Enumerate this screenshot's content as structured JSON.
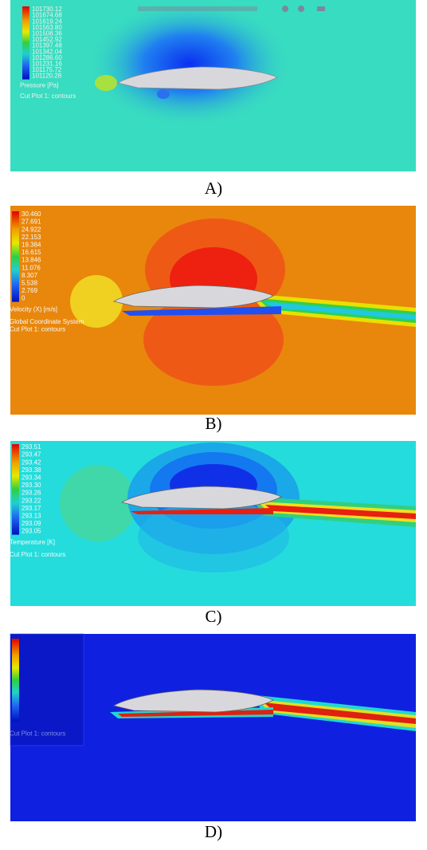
{
  "panels": [
    {
      "caption": "A)",
      "legend": {
        "values": [
          "101730.12",
          "101674.68",
          "101619.24",
          "101563.80",
          "101508.36",
          "101452.92",
          "101397.48",
          "101342.04",
          "101286.60",
          "101231.16",
          "101175.72",
          "101120.28"
        ],
        "title": "Pressure [Pa]",
        "notes": [
          "Cut Plot 1: contours"
        ]
      }
    },
    {
      "caption": "B)",
      "legend": {
        "values": [
          "30.460",
          "27.691",
          "24.922",
          "22.153",
          "19.384",
          "16.615",
          "13.846",
          "11.076",
          "8.307",
          "5.538",
          "2.769",
          "0"
        ],
        "title": "Velocity (X) [m/s]",
        "notes": [
          "Global Coordinate System",
          "Cut Plot 1: contours"
        ]
      }
    },
    {
      "caption": "C)",
      "legend": {
        "values": [
          "293.51",
          "293.47",
          "293.42",
          "293.38",
          "293.34",
          "293.30",
          "293.26",
          "293.22",
          "293.17",
          "293.13",
          "293.09",
          "293.05"
        ],
        "title": "Temperature [K]",
        "notes": [
          "Cut Plot 1: contours"
        ]
      }
    },
    {
      "caption": "D)",
      "legend": {
        "notes": [
          "Cut Plot 1: contours"
        ]
      }
    }
  ]
}
